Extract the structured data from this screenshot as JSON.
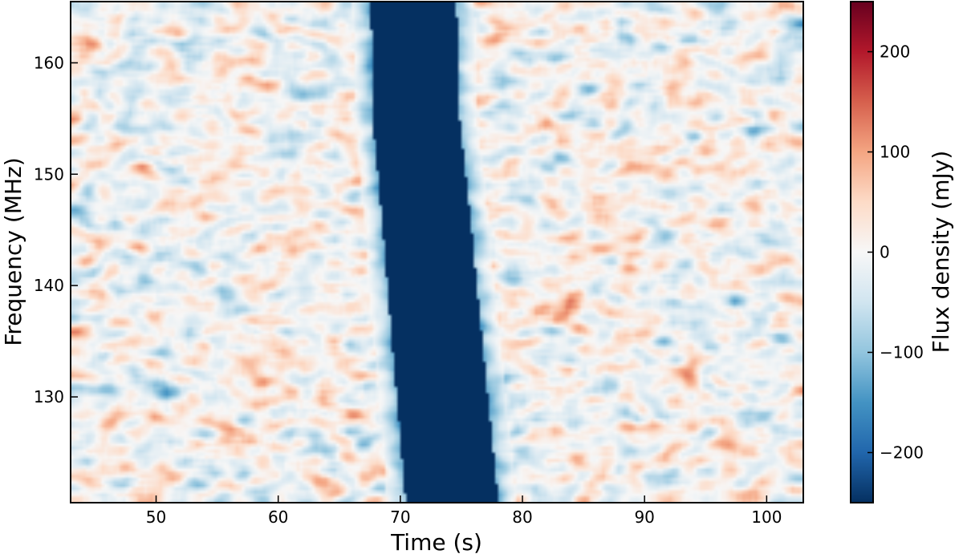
{
  "chart_data": {
    "type": "heatmap",
    "title": "",
    "xlabel": "Time (s)",
    "ylabel": "Frequency (MHz)",
    "xlim": [
      43,
      103
    ],
    "ylim": [
      120.5,
      165.5
    ],
    "x_ticks": [
      50,
      60,
      70,
      80,
      90,
      100
    ],
    "y_ticks": [
      130,
      140,
      150,
      160
    ],
    "colorbar": {
      "label": "Flux density (mJy)",
      "range": [
        -250,
        250
      ],
      "ticks": [
        200,
        100,
        0,
        -100,
        -200
      ],
      "tick_labels": [
        "200",
        "100",
        "0",
        "−100",
        "−200"
      ],
      "colormap": "RdBu_r"
    },
    "feature": {
      "description_from_pixels": "dispersed negative-flux burst",
      "value_mjy": -250,
      "sweep": [
        {
          "frequency_mhz": 165,
          "time_s": 71.1
        },
        {
          "frequency_mhz": 155,
          "time_s": 71.3
        },
        {
          "frequency_mhz": 145,
          "time_s": 72.2
        },
        {
          "frequency_mhz": 135,
          "time_s": 73.0
        },
        {
          "frequency_mhz": 121,
          "time_s": 74.2
        }
      ],
      "half_width_s": [
        3.5,
        3.8
      ]
    },
    "background": {
      "mean_mjy": 0,
      "scatter_mjy": 90
    },
    "grid": false
  }
}
